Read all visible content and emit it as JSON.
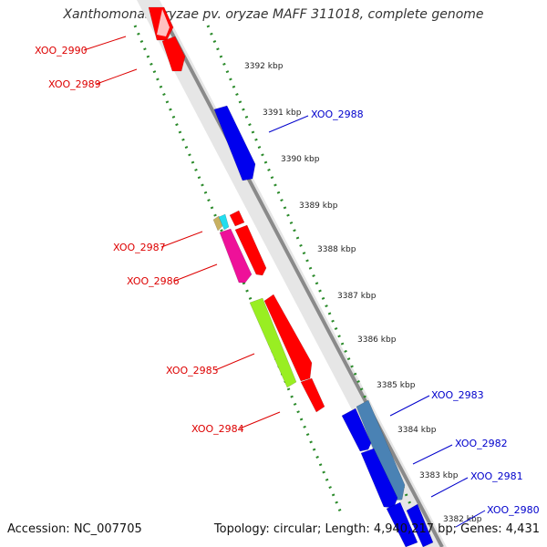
{
  "title": "Xanthomonas oryzae pv. oryzae MAFF 311018, complete genome",
  "footer": {
    "accession": "Accession: NC_007705",
    "summary": "Topology: circular; Length: 4,940,217 bp; Genes: 4,431"
  },
  "colors": {
    "backbone": "#888888",
    "backbone_light": "#cccccc",
    "ticks": "#2a8a2a",
    "forward_label": "#dd0000",
    "reverse_label": "#0000cc"
  },
  "ticks": [
    "3392 kbp",
    "3391 kbp",
    "3390 kbp",
    "3389 kbp",
    "3388 kbp",
    "3387 kbp",
    "3386 kbp",
    "3385 kbp",
    "3384 kbp",
    "3383 kbp",
    "3382 kbp"
  ],
  "genes": [
    {
      "id": "XOO_2990",
      "strand": "-",
      "color": "#ff0000"
    },
    {
      "id": "XOO_2989",
      "strand": "-",
      "color": "#ff0000"
    },
    {
      "id": "XOO_2988",
      "strand": "+",
      "color": "#0000ee"
    },
    {
      "id": "XOO_2987",
      "strand": "-",
      "color": "#ff0000"
    },
    {
      "id": "XOO_2986",
      "strand": "-",
      "color": "#ee1199"
    },
    {
      "id": "XOO_2985",
      "strand": "-",
      "color": "#99ee22"
    },
    {
      "id": "XOO_2984",
      "strand": "-",
      "color": "#ff0000"
    },
    {
      "id": "XOO_2983",
      "strand": "+",
      "color": "#4a82b4"
    },
    {
      "id": "XOO_2982",
      "strand": "+",
      "color": "#0000ee"
    },
    {
      "id": "XOO_2981",
      "strand": "+",
      "color": "#0000ee"
    },
    {
      "id": "XOO_2980",
      "strand": "+",
      "color": "#0000ee"
    }
  ]
}
